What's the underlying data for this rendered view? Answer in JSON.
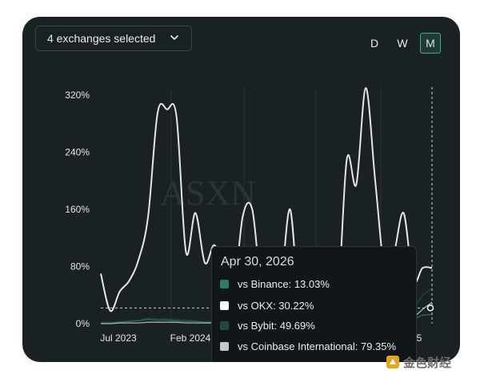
{
  "toolbar": {
    "exchange_select_label": "4 exchanges selected",
    "timeframes": [
      "D",
      "W",
      "M"
    ],
    "active_timeframe": "M"
  },
  "watermark": "ASXN",
  "chart_data": {
    "type": "line",
    "y_unit": "%",
    "ylim": [
      0,
      320
    ],
    "y_ticks": [
      "320%",
      "240%",
      "160%",
      "80%",
      "0%"
    ],
    "x_tick_labels": [
      "Jul 2023",
      "Feb 2024",
      "5"
    ],
    "grid": true,
    "series": [
      {
        "values": [
          70,
          18,
          45,
          60,
          90,
          150,
          295,
          300,
          290,
          100,
          155,
          85,
          110,
          75,
          40,
          150,
          160,
          50,
          70,
          55,
          160,
          20,
          40,
          80,
          45,
          25,
          230,
          195,
          330,
          200,
          75,
          100,
          155,
          60,
          78,
          78
        ]
      }
    ],
    "crosshair_value": 22,
    "colors": {
      "line": "#e6e6e6",
      "binance": "#2f7a62",
      "okx": "#ffffff",
      "bybit": "#1f4a3d",
      "coinbase_international": "#c7c7c7"
    }
  },
  "tooltip": {
    "date": "Apr 30, 2026",
    "rows": [
      {
        "label": "vs Binance: 13.03%",
        "color": "#2f7a62"
      },
      {
        "label": "vs OKX: 30.22%",
        "color": "#ffffff"
      },
      {
        "label": "vs Bybit: 49.69%",
        "color": "#1f4a3d"
      },
      {
        "label": "vs Coinbase International: 79.35%",
        "color": "#c7c7c7"
      }
    ]
  },
  "logo": {
    "text": "金色财经"
  }
}
